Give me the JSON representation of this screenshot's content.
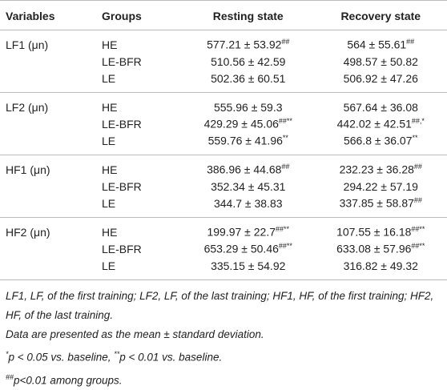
{
  "table": {
    "header": [
      "Variables",
      "Groups",
      "Resting state",
      "Recovery state"
    ],
    "blocks": [
      {
        "variable": "LF1 (μn)",
        "rows": [
          {
            "group": "HE",
            "resting": {
              "value": "577.21 ± 53.92",
              "sup": "##"
            },
            "recovery": {
              "value": "564 ± 55.61",
              "sup": "##"
            }
          },
          {
            "group": "LE-BFR",
            "resting": {
              "value": "510.56 ± 42.59"
            },
            "recovery": {
              "value": "498.57 ± 50.82"
            }
          },
          {
            "group": "LE",
            "resting": {
              "value": "502.36 ± 60.51"
            },
            "recovery": {
              "value": "506.92 ± 47.26"
            }
          }
        ]
      },
      {
        "variable": "LF2 (μn)",
        "rows": [
          {
            "group": "HE",
            "resting": {
              "value": "555.96 ± 59.3"
            },
            "recovery": {
              "value": "567.64 ± 36.08"
            }
          },
          {
            "group": "LE-BFR",
            "resting": {
              "value": "429.29 ± 45.06",
              "sup": "##**"
            },
            "recovery": {
              "value": "442.02 ± 42.51",
              "sup": "##,*"
            }
          },
          {
            "group": "LE",
            "resting": {
              "value": "559.76 ± 41.96",
              "sup": "**"
            },
            "recovery": {
              "value": "566.8 ± 36.07",
              "sup": "**"
            }
          }
        ]
      },
      {
        "variable": "HF1 (μn)",
        "rows": [
          {
            "group": "HE",
            "resting": {
              "value": "386.96 ± 44.68",
              "sup": "##"
            },
            "recovery": {
              "value": "232.23 ± 36.28",
              "sup": "##"
            }
          },
          {
            "group": "LE-BFR",
            "resting": {
              "value": "352.34 ± 45.31"
            },
            "recovery": {
              "value": "294.22 ± 57.19"
            }
          },
          {
            "group": "LE",
            "resting": {
              "value": "344.7 ± 38.83"
            },
            "recovery": {
              "value": "337.85 ± 58.87",
              "sup": "##"
            }
          }
        ]
      },
      {
        "variable": "HF2 (μn)",
        "rows": [
          {
            "group": "HE",
            "resting": {
              "value": "199.97 ± 22.7",
              "sup": "##**"
            },
            "recovery": {
              "value": "107.55 ± 16.18",
              "sup": "##**"
            }
          },
          {
            "group": "LE-BFR",
            "resting": {
              "value": "653.29 ± 50.46",
              "sup": "##**"
            },
            "recovery": {
              "value": "633.08 ± 57.96",
              "sup": "##**"
            }
          },
          {
            "group": "LE",
            "resting": {
              "value": "335.15 ± 54.92"
            },
            "recovery": {
              "value": "316.82 ± 49.32"
            }
          }
        ]
      }
    ]
  },
  "footnotes": [
    [
      {
        "text": "LF1, LF, of the first training; LF2, LF, of the last training; HF1, HF, of the first training; HF2, HF, of the last training."
      }
    ],
    [
      {
        "text": "Data are presented as the mean ± standard deviation."
      }
    ],
    [
      {
        "sup": "*"
      },
      {
        "text": "p < 0.05 vs. baseline, "
      },
      {
        "sup": "**"
      },
      {
        "text": "p < 0.01 vs. baseline."
      }
    ],
    [
      {
        "sup": "##"
      },
      {
        "text": "p<0.01 among groups."
      }
    ]
  ]
}
